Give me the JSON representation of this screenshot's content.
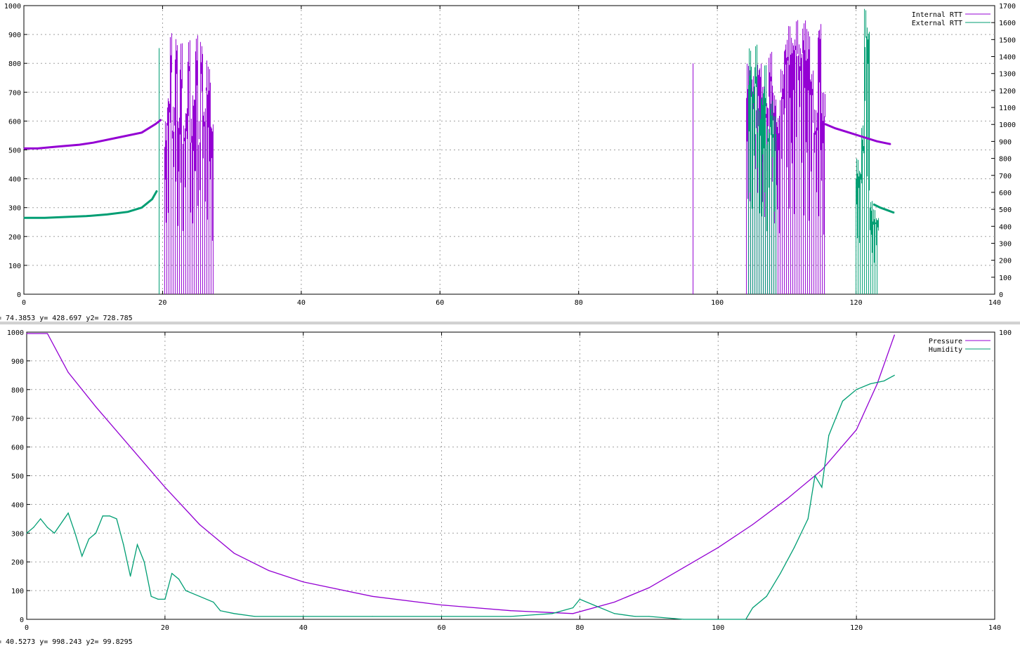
{
  "colors": {
    "series1": "#9400d3",
    "series2": "#009e73",
    "grid": "#a0a0a0"
  },
  "chart_data": [
    {
      "type": "line",
      "title": "",
      "xlabel": "",
      "ylabel": "",
      "y2label": "",
      "xlim": [
        0,
        140
      ],
      "ylim": [
        0,
        1000
      ],
      "y2lim": [
        0,
        1700
      ],
      "xticks": [
        "0",
        "20",
        "40",
        "60",
        "80",
        "100",
        "120",
        "140"
      ],
      "yticks": [
        "0",
        "100",
        "200",
        "300",
        "400",
        "500",
        "600",
        "700",
        "800",
        "900",
        "1000"
      ],
      "y2ticks": [
        "0",
        "100",
        "200",
        "300",
        "400",
        "500",
        "600",
        "700",
        "800",
        "900",
        "1000",
        "1100",
        "1200",
        "1300",
        "1400",
        "1500",
        "1600",
        "1700"
      ],
      "grid": true,
      "legend": "top-right",
      "series": [
        {
          "name": "Internal RTT",
          "axis": "y1",
          "color": "#9400d3",
          "x": [
            0,
            2,
            5,
            8,
            10,
            14,
            17,
            19,
            19.8
          ],
          "y": [
            505,
            505,
            512,
            518,
            525,
            545,
            560,
            590,
            605
          ]
        },
        {
          "name": "External RTT",
          "axis": "y2",
          "color": "#009e73",
          "x": [
            0,
            3,
            6,
            9,
            12,
            15,
            17,
            18.5,
            19.2
          ],
          "y": [
            450,
            450,
            455,
            460,
            470,
            485,
            510,
            560,
            610
          ]
        },
        {
          "name": "Internal RTT",
          "axis": "y1",
          "color": "#9400d3",
          "x": [
            115.5,
            117,
            119,
            121,
            123,
            125
          ],
          "y": [
            590,
            575,
            560,
            545,
            530,
            520
          ]
        },
        {
          "name": "External RTT",
          "axis": "y2",
          "color": "#009e73",
          "x": [
            122.5,
            123.5,
            124.5,
            125.5
          ],
          "y": [
            530,
            510,
            495,
            480
          ]
        }
      ],
      "bursts": [
        {
          "axis": "y1",
          "color": "#9400d3",
          "x_from": 20.3,
          "x_to": 27.3,
          "peaks": [
            600,
            700,
            910,
            650,
            900,
            620,
            870,
            590,
            660,
            880,
            610,
            700,
            900,
            600,
            880,
            650,
            810,
            790,
            600
          ]
        },
        {
          "axis": "y1",
          "color": "#9400d3",
          "x_from": 104.2,
          "x_to": 115.5,
          "peaks": [
            800,
            760,
            640,
            810,
            720,
            680,
            840,
            700,
            620,
            780,
            890,
            930,
            900,
            950,
            870,
            950,
            920,
            780,
            640,
            950,
            700
          ]
        },
        {
          "axis": "y2",
          "color": "#009e73",
          "x_from": 104.5,
          "x_to": 108.5,
          "peaks": [
            1450,
            1250,
            1470,
            1100,
            1200,
            1350,
            1000,
            1150,
            1050
          ]
        },
        {
          "axis": "y2",
          "color": "#009e73",
          "x_from": 120,
          "x_to": 123.2,
          "peaks": [
            800,
            750,
            1000,
            1680,
            1600,
            550,
            500,
            460
          ]
        }
      ],
      "spikes": [
        {
          "axis": "y1",
          "color": "#9400d3",
          "x": 96.5,
          "y": 800
        },
        {
          "axis": "y2",
          "color": "#009e73",
          "x": 19.5,
          "y": 1450
        }
      ],
      "status": "= 74.3853 y= 428.697 y2= 728.785"
    },
    {
      "type": "line",
      "title": "",
      "xlabel": "",
      "ylabel": "",
      "y2label": "",
      "xlim": [
        0,
        140
      ],
      "ylim": [
        0,
        1000
      ],
      "y2lim": [
        0,
        100
      ],
      "xticks": [
        "0",
        "20",
        "40",
        "60",
        "80",
        "100",
        "120",
        "140"
      ],
      "yticks": [
        "0",
        "100",
        "200",
        "300",
        "400",
        "500",
        "600",
        "700",
        "800",
        "900",
        "1000"
      ],
      "y2ticks": [
        "100"
      ],
      "grid": true,
      "legend": "top-right",
      "series": [
        {
          "name": "Pressure",
          "axis": "y1",
          "color": "#9400d3",
          "x": [
            0,
            3,
            6,
            10,
            15,
            20,
            25,
            30,
            35,
            40,
            50,
            60,
            70,
            79,
            85,
            90,
            95,
            100,
            105,
            110,
            115,
            120,
            123,
            125.5
          ],
          "y": [
            995,
            995,
            860,
            740,
            600,
            460,
            330,
            230,
            170,
            130,
            80,
            50,
            30,
            20,
            60,
            110,
            180,
            250,
            330,
            420,
            520,
            660,
            820,
            990
          ]
        },
        {
          "name": "Humidity",
          "axis": "y1",
          "color": "#009e73",
          "x": [
            0,
            1,
            2,
            3,
            4,
            6,
            7,
            8,
            9,
            10,
            11,
            12,
            13,
            14,
            15,
            16,
            17,
            18,
            19,
            20,
            21,
            22,
            23,
            25,
            27,
            28,
            30,
            33,
            40,
            50,
            60,
            70,
            76,
            79,
            80,
            82,
            85,
            88,
            90,
            95,
            100,
            104,
            105,
            107,
            109,
            111,
            113,
            114,
            115,
            116,
            117,
            118,
            120,
            122,
            124,
            125.5
          ],
          "y": [
            300,
            320,
            350,
            320,
            300,
            370,
            300,
            220,
            280,
            300,
            360,
            360,
            350,
            260,
            150,
            260,
            200,
            80,
            70,
            70,
            160,
            140,
            100,
            80,
            60,
            30,
            20,
            10,
            10,
            10,
            10,
            10,
            20,
            40,
            70,
            50,
            20,
            10,
            10,
            0,
            0,
            0,
            40,
            80,
            160,
            250,
            350,
            500,
            460,
            640,
            700,
            760,
            800,
            820,
            830,
            850
          ]
        }
      ],
      "status": "= 40.5273 y= 998.243 y2= 99.8295"
    }
  ]
}
